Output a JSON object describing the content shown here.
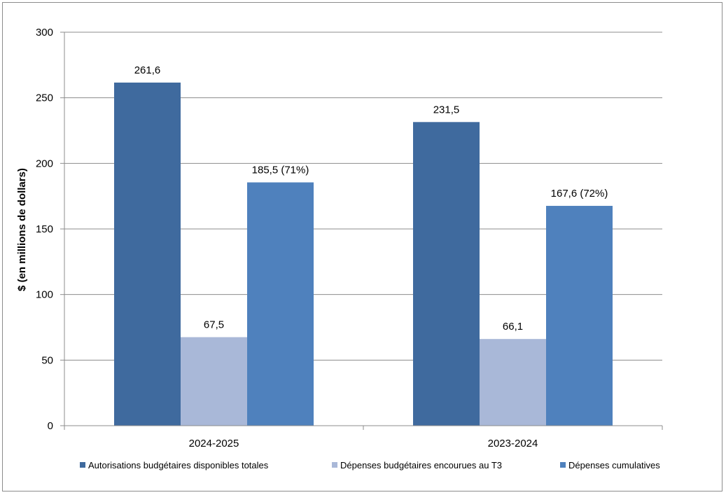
{
  "chart_data": {
    "type": "bar",
    "categories": [
      "2024-2025",
      "2023-2024"
    ],
    "series": [
      {
        "name": "Autorisations budgétaires disponibles totales",
        "values": [
          261.6,
          231.5
        ],
        "labels": [
          "261,6",
          "231,5"
        ],
        "color": "#3F6A9E"
      },
      {
        "name": "Dépenses budgétaires encourues au T3",
        "values": [
          67.5,
          66.1
        ],
        "labels": [
          "67,5",
          "66,1"
        ],
        "color": "#A9B8D8"
      },
      {
        "name": "Dépenses cumulatives",
        "values": [
          185.5,
          167.6
        ],
        "labels": [
          "185,5 (71%)",
          "167,6 (72%)"
        ],
        "color": "#4F81BD"
      }
    ],
    "title": "",
    "xlabel": "",
    "ylabel": "$ (en millions de dollars)",
    "ylim": [
      0,
      300
    ],
    "yticks": [
      0,
      50,
      100,
      150,
      200,
      250,
      300
    ],
    "grid": true,
    "legend_position": "bottom"
  }
}
